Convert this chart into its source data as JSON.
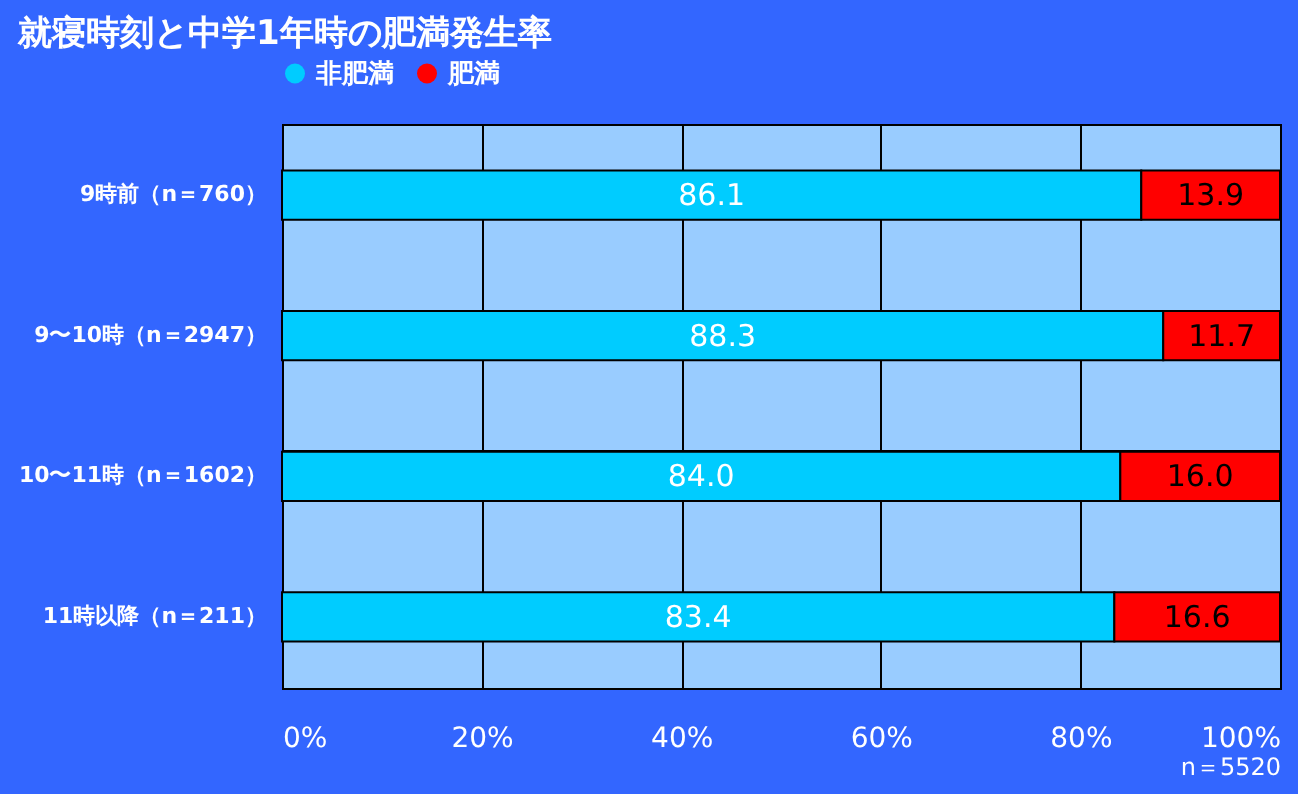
{
  "chart_data": {
    "type": "bar",
    "orientation": "horizontal",
    "stacked": true,
    "title": "就寝時刻と中学1年時の肥満発生率",
    "categories": [
      "9時前（n＝760）",
      "9〜10時（n＝2947）",
      "10〜11時（n＝1602）",
      "11時以降（n＝211）"
    ],
    "series": [
      {
        "name": "非肥満",
        "color": "#00ccff",
        "values": [
          86.1,
          88.3,
          84.0,
          83.4
        ]
      },
      {
        "name": "肥満",
        "color": "#ff0000",
        "values": [
          13.9,
          11.7,
          16.0,
          16.6
        ]
      }
    ],
    "value_labels": [
      [
        "86.1",
        "88.3",
        "84.0",
        "83.4"
      ],
      [
        "13.9",
        "11.7",
        "16.0",
        "16.6"
      ]
    ],
    "xlim": [
      0,
      100
    ],
    "xticks": [
      {
        "value": 0,
        "label": "0%"
      },
      {
        "value": 20,
        "label": "20%"
      },
      {
        "value": 40,
        "label": "40%"
      },
      {
        "value": 60,
        "label": "60%"
      },
      {
        "value": 80,
        "label": "80%"
      },
      {
        "value": 100,
        "label": "100%"
      }
    ],
    "annotations": [
      "n＝5520"
    ],
    "grid": true,
    "legend": "top"
  }
}
